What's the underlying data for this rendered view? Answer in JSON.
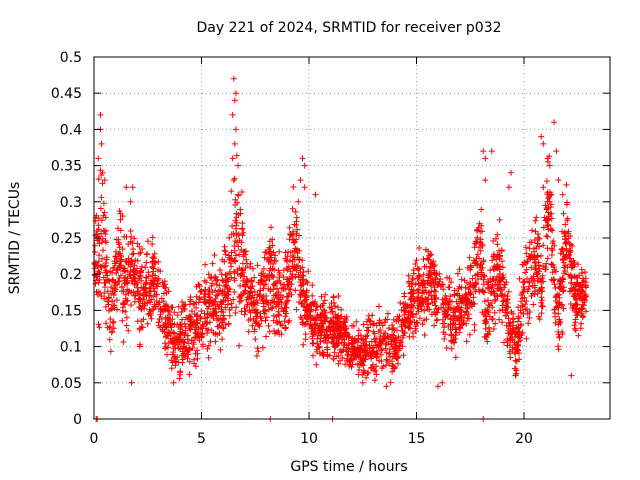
{
  "chart_data": {
    "type": "scatter",
    "title": "Day 221 of 2024, SRMTID for receiver p032",
    "xlabel": "GPS time / hours",
    "ylabel": "SRMTID / TECUs",
    "xlim": [
      0,
      24
    ],
    "ylim": [
      0,
      0.5
    ],
    "xticks": [
      0,
      5,
      10,
      15,
      20
    ],
    "xtick_labels": [
      "0",
      "5",
      "10",
      "15",
      "20"
    ],
    "yticks": [
      0,
      0.05,
      0.1,
      0.15,
      0.2,
      0.25,
      0.3,
      0.35,
      0.4,
      0.45,
      0.5
    ],
    "ytick_labels": [
      "0",
      "0.05",
      "0.1",
      "0.15",
      "0.2",
      "0.25",
      "0.3",
      "0.35",
      "0.4",
      "0.45",
      "0.5"
    ],
    "grid": true,
    "marker": "plus",
    "color": "#ff0000",
    "x_range_of_samples": [
      0,
      22.9
    ],
    "envelope_points_per_hour_note": "",
    "series": [
      {
        "name": "SRMTID",
        "x": [
          0.0,
          0.1,
          0.2,
          0.3,
          0.4,
          0.5,
          0.6,
          0.8,
          1.0,
          1.2,
          1.4,
          1.6,
          1.8,
          2.0,
          2.2,
          2.4,
          2.6,
          2.8,
          3.0,
          3.2,
          3.4,
          3.6,
          3.8,
          4.0,
          4.2,
          4.4,
          4.6,
          4.8,
          5.0,
          5.2,
          5.4,
          5.6,
          5.8,
          6.0,
          6.2,
          6.4,
          6.6,
          6.8,
          7.0,
          7.2,
          7.4,
          7.6,
          7.8,
          8.0,
          8.2,
          8.4,
          8.6,
          8.8,
          9.0,
          9.2,
          9.4,
          9.6,
          9.8,
          10.0,
          10.2,
          10.4,
          10.6,
          10.8,
          11.0,
          11.2,
          11.4,
          11.6,
          11.8,
          12.0,
          12.2,
          12.4,
          12.6,
          12.8,
          13.0,
          13.2,
          13.4,
          13.6,
          13.8,
          14.0,
          14.2,
          14.4,
          14.6,
          14.8,
          15.0,
          15.2,
          15.4,
          15.6,
          15.8,
          16.0,
          16.2,
          16.4,
          16.6,
          16.8,
          17.0,
          17.2,
          17.4,
          17.6,
          17.8,
          18.0,
          18.2,
          18.4,
          18.6,
          18.8,
          19.0,
          19.2,
          19.4,
          19.6,
          19.8,
          20.0,
          20.2,
          20.4,
          20.6,
          20.8,
          21.0,
          21.2,
          21.4,
          21.6,
          21.8,
          22.0,
          22.2,
          22.4,
          22.6,
          22.8
        ],
        "center": [
          0.2,
          0.22,
          0.24,
          0.25,
          0.26,
          0.22,
          0.18,
          0.15,
          0.2,
          0.22,
          0.18,
          0.2,
          0.22,
          0.18,
          0.17,
          0.2,
          0.18,
          0.2,
          0.17,
          0.15,
          0.14,
          0.12,
          0.1,
          0.1,
          0.12,
          0.12,
          0.14,
          0.12,
          0.14,
          0.15,
          0.16,
          0.17,
          0.15,
          0.17,
          0.18,
          0.22,
          0.25,
          0.22,
          0.2,
          0.17,
          0.16,
          0.15,
          0.17,
          0.18,
          0.2,
          0.18,
          0.17,
          0.16,
          0.2,
          0.22,
          0.24,
          0.18,
          0.16,
          0.15,
          0.13,
          0.12,
          0.13,
          0.13,
          0.12,
          0.13,
          0.12,
          0.11,
          0.1,
          0.1,
          0.1,
          0.09,
          0.09,
          0.1,
          0.1,
          0.1,
          0.11,
          0.11,
          0.1,
          0.1,
          0.12,
          0.14,
          0.15,
          0.16,
          0.18,
          0.17,
          0.18,
          0.19,
          0.17,
          0.17,
          0.16,
          0.15,
          0.14,
          0.14,
          0.15,
          0.15,
          0.16,
          0.18,
          0.22,
          0.24,
          0.14,
          0.16,
          0.2,
          0.2,
          0.18,
          0.15,
          0.12,
          0.1,
          0.13,
          0.18,
          0.2,
          0.2,
          0.22,
          0.17,
          0.26,
          0.3,
          0.2,
          0.14,
          0.2,
          0.26,
          0.2,
          0.16,
          0.16,
          0.17
        ],
        "spread": [
          0.06,
          0.07,
          0.1,
          0.1,
          0.09,
          0.08,
          0.06,
          0.05,
          0.05,
          0.06,
          0.06,
          0.06,
          0.05,
          0.06,
          0.06,
          0.05,
          0.05,
          0.05,
          0.05,
          0.05,
          0.05,
          0.04,
          0.04,
          0.04,
          0.04,
          0.05,
          0.05,
          0.05,
          0.05,
          0.05,
          0.05,
          0.05,
          0.05,
          0.05,
          0.05,
          0.08,
          0.1,
          0.08,
          0.06,
          0.05,
          0.05,
          0.05,
          0.05,
          0.05,
          0.06,
          0.05,
          0.05,
          0.05,
          0.06,
          0.07,
          0.06,
          0.05,
          0.05,
          0.05,
          0.04,
          0.04,
          0.04,
          0.04,
          0.04,
          0.04,
          0.04,
          0.04,
          0.03,
          0.03,
          0.03,
          0.03,
          0.03,
          0.04,
          0.04,
          0.04,
          0.04,
          0.04,
          0.04,
          0.04,
          0.04,
          0.04,
          0.04,
          0.04,
          0.05,
          0.05,
          0.05,
          0.05,
          0.04,
          0.04,
          0.04,
          0.04,
          0.04,
          0.04,
          0.04,
          0.04,
          0.04,
          0.05,
          0.06,
          0.07,
          0.04,
          0.05,
          0.06,
          0.06,
          0.05,
          0.05,
          0.04,
          0.04,
          0.05,
          0.05,
          0.06,
          0.06,
          0.06,
          0.05,
          0.06,
          0.06,
          0.06,
          0.05,
          0.06,
          0.06,
          0.05,
          0.04,
          0.04,
          0.04
        ],
        "outliers": [
          [
            0.3,
            0.42
          ],
          [
            0.3,
            0.4
          ],
          [
            0.35,
            0.38
          ],
          [
            0.4,
            0.34
          ],
          [
            0.5,
            0.33
          ],
          [
            0.2,
            0.36
          ],
          [
            1.5,
            0.32
          ],
          [
            1.8,
            0.32
          ],
          [
            1.7,
            0.3
          ],
          [
            1.75,
            0.05
          ],
          [
            6.5,
            0.47
          ],
          [
            6.6,
            0.45
          ],
          [
            6.55,
            0.44
          ],
          [
            6.45,
            0.42
          ],
          [
            6.6,
            0.4
          ],
          [
            6.55,
            0.38
          ],
          [
            6.45,
            0.36
          ],
          [
            6.7,
            0.35
          ],
          [
            6.5,
            0.33
          ],
          [
            6.7,
            0.31
          ],
          [
            9.7,
            0.36
          ],
          [
            9.8,
            0.35
          ],
          [
            9.6,
            0.33
          ],
          [
            9.8,
            0.32
          ],
          [
            9.5,
            0.3
          ],
          [
            10.3,
            0.31
          ],
          [
            18.1,
            0.37
          ],
          [
            18.2,
            0.36
          ],
          [
            18.5,
            0.37
          ],
          [
            18.2,
            0.33
          ],
          [
            19.4,
            0.34
          ],
          [
            19.3,
            0.32
          ],
          [
            20.8,
            0.39
          ],
          [
            20.9,
            0.38
          ],
          [
            21.1,
            0.36
          ],
          [
            21.2,
            0.35
          ],
          [
            21.4,
            0.41
          ],
          [
            21.5,
            0.37
          ],
          [
            21.6,
            0.33
          ],
          [
            21.8,
            0.31
          ],
          [
            20.9,
            0.32
          ],
          [
            0.1,
            0.0
          ],
          [
            0.15,
            0.0
          ],
          [
            8.2,
            0.0
          ],
          [
            11.1,
            0.0
          ],
          [
            18.1,
            0.0
          ],
          [
            12.5,
            0.05
          ],
          [
            13.6,
            0.045
          ],
          [
            16.0,
            0.045
          ],
          [
            16.2,
            0.05
          ],
          [
            19.6,
            0.06
          ],
          [
            22.2,
            0.06
          ],
          [
            3.7,
            0.05
          ]
        ]
      }
    ]
  }
}
